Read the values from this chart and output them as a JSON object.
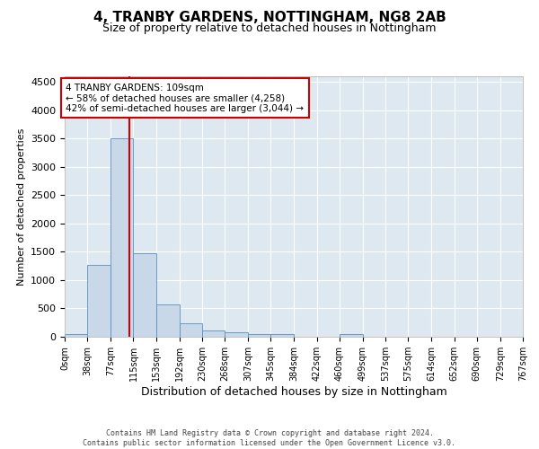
{
  "title1": "4, TRANBY GARDENS, NOTTINGHAM, NG8 2AB",
  "title2": "Size of property relative to detached houses in Nottingham",
  "xlabel": "Distribution of detached houses by size in Nottingham",
  "ylabel": "Number of detached properties",
  "bin_edges": [
    0,
    38,
    77,
    115,
    153,
    192,
    230,
    268,
    307,
    345,
    384,
    422,
    460,
    499,
    537,
    575,
    614,
    652,
    690,
    729,
    767
  ],
  "bar_heights": [
    50,
    1270,
    3500,
    1480,
    575,
    240,
    115,
    85,
    55,
    45,
    0,
    0,
    55,
    0,
    0,
    0,
    0,
    0,
    0,
    0
  ],
  "bar_color": "#c8d8e8",
  "bar_edge_color": "#5a8fc0",
  "red_line_x": 109,
  "annotation_text": "4 TRANBY GARDENS: 109sqm\n← 58% of detached houses are smaller (4,258)\n42% of semi-detached houses are larger (3,044) →",
  "annotation_box_color": "#ffffff",
  "annotation_box_edge": "#cc0000",
  "annotation_text_color": "#000000",
  "red_line_color": "#cc0000",
  "ylim": [
    0,
    4600
  ],
  "yticks": [
    0,
    500,
    1000,
    1500,
    2000,
    2500,
    3000,
    3500,
    4000,
    4500
  ],
  "bg_color": "#dde8f0",
  "footer_line1": "Contains HM Land Registry data © Crown copyright and database right 2024.",
  "footer_line2": "Contains public sector information licensed under the Open Government Licence v3.0.",
  "title1_fontsize": 11,
  "title2_fontsize": 9,
  "tick_label_fontsize": 7,
  "ylabel_fontsize": 8,
  "xlabel_fontsize": 9
}
